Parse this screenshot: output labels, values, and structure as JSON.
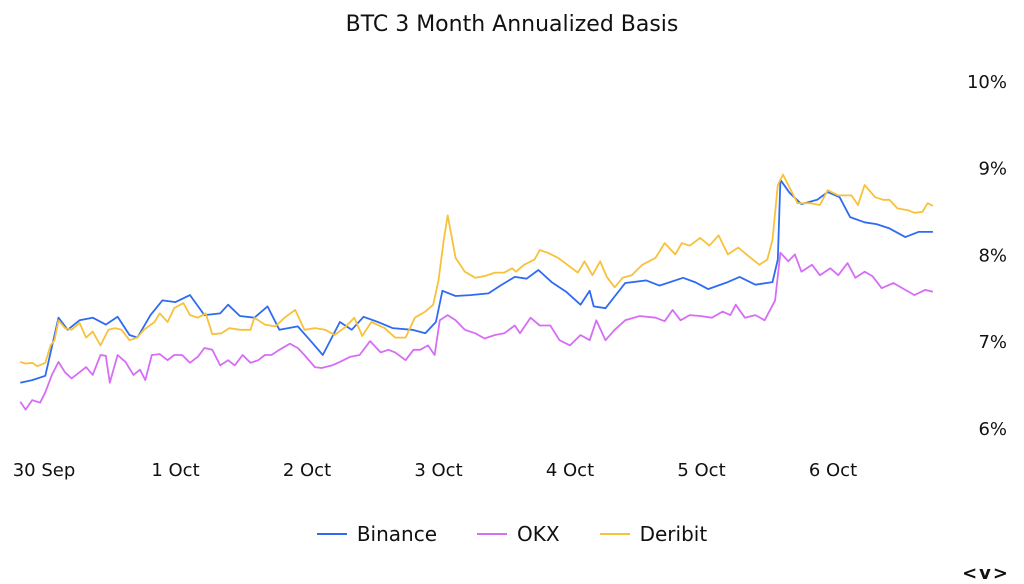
{
  "chart_data": {
    "type": "line",
    "title": "BTC 3 Month Annualized Basis",
    "xlabel": "",
    "ylabel": "",
    "x_unit": "days since 30 Sep",
    "x_ticks": [
      {
        "x": 0,
        "label": "30 Sep"
      },
      {
        "x": 1,
        "label": "1 Oct"
      },
      {
        "x": 2,
        "label": "2 Oct"
      },
      {
        "x": 3,
        "label": "3 Oct"
      },
      {
        "x": 4,
        "label": "4 Oct"
      },
      {
        "x": 5,
        "label": "5 Oct"
      },
      {
        "x": 6,
        "label": "6 Oct"
      }
    ],
    "y_ticks": [
      {
        "y": 6,
        "label": "6%"
      },
      {
        "y": 7,
        "label": "7%"
      },
      {
        "y": 8,
        "label": "8%"
      },
      {
        "y": 9,
        "label": "9%"
      },
      {
        "y": 10,
        "label": "10%"
      }
    ],
    "ylim": [
      6,
      10
    ],
    "xlim": [
      -0.18,
      6.76
    ],
    "y_axis_side": "right",
    "grid": false,
    "legend_position": "bottom-center",
    "series": [
      {
        "name": "Binance",
        "color": "#2f6bf2",
        "points": [
          [
            -0.18,
            6.52
          ],
          [
            -0.09,
            6.55
          ],
          [
            0.01,
            6.6
          ],
          [
            0.11,
            7.27
          ],
          [
            0.18,
            7.13
          ],
          [
            0.27,
            7.24
          ],
          [
            0.37,
            7.27
          ],
          [
            0.47,
            7.19
          ],
          [
            0.56,
            7.28
          ],
          [
            0.65,
            7.07
          ],
          [
            0.71,
            7.04
          ],
          [
            0.81,
            7.3
          ],
          [
            0.9,
            7.47
          ],
          [
            1.0,
            7.45
          ],
          [
            1.11,
            7.53
          ],
          [
            1.22,
            7.3
          ],
          [
            1.34,
            7.32
          ],
          [
            1.4,
            7.42
          ],
          [
            1.49,
            7.29
          ],
          [
            1.6,
            7.27
          ],
          [
            1.7,
            7.4
          ],
          [
            1.79,
            7.13
          ],
          [
            1.93,
            7.17
          ],
          [
            2.04,
            6.98
          ],
          [
            2.12,
            6.84
          ],
          [
            2.25,
            7.22
          ],
          [
            2.34,
            7.13
          ],
          [
            2.43,
            7.28
          ],
          [
            2.54,
            7.22
          ],
          [
            2.65,
            7.15
          ],
          [
            2.8,
            7.13
          ],
          [
            2.9,
            7.09
          ],
          [
            2.98,
            7.22
          ],
          [
            3.03,
            7.58
          ],
          [
            3.13,
            7.52
          ],
          [
            3.24,
            7.53
          ],
          [
            3.38,
            7.55
          ],
          [
            3.47,
            7.64
          ],
          [
            3.58,
            7.74
          ],
          [
            3.67,
            7.72
          ],
          [
            3.76,
            7.82
          ],
          [
            3.86,
            7.68
          ],
          [
            3.97,
            7.57
          ],
          [
            4.08,
            7.42
          ],
          [
            4.15,
            7.58
          ],
          [
            4.18,
            7.4
          ],
          [
            4.27,
            7.38
          ],
          [
            4.42,
            7.67
          ],
          [
            4.58,
            7.7
          ],
          [
            4.68,
            7.64
          ],
          [
            4.86,
            7.73
          ],
          [
            4.95,
            7.68
          ],
          [
            5.05,
            7.6
          ],
          [
            5.2,
            7.68
          ],
          [
            5.29,
            7.74
          ],
          [
            5.41,
            7.65
          ],
          [
            5.54,
            7.68
          ],
          [
            5.58,
            7.94
          ],
          [
            5.6,
            8.86
          ],
          [
            5.67,
            8.71
          ],
          [
            5.76,
            8.58
          ],
          [
            5.88,
            8.63
          ],
          [
            5.96,
            8.72
          ],
          [
            6.05,
            8.66
          ],
          [
            6.13,
            8.43
          ],
          [
            6.24,
            8.37
          ],
          [
            6.33,
            8.35
          ],
          [
            6.43,
            8.3
          ],
          [
            6.55,
            8.2
          ],
          [
            6.65,
            8.26
          ],
          [
            6.76,
            8.26
          ]
        ]
      },
      {
        "name": "OKX",
        "color": "#d66ef5",
        "points": [
          [
            -0.18,
            6.3
          ],
          [
            -0.14,
            6.21
          ],
          [
            -0.09,
            6.32
          ],
          [
            -0.03,
            6.29
          ],
          [
            0.01,
            6.41
          ],
          [
            0.06,
            6.61
          ],
          [
            0.11,
            6.76
          ],
          [
            0.16,
            6.64
          ],
          [
            0.21,
            6.57
          ],
          [
            0.27,
            6.64
          ],
          [
            0.32,
            6.7
          ],
          [
            0.37,
            6.61
          ],
          [
            0.43,
            6.84
          ],
          [
            0.47,
            6.83
          ],
          [
            0.5,
            6.52
          ],
          [
            0.56,
            6.84
          ],
          [
            0.62,
            6.76
          ],
          [
            0.68,
            6.61
          ],
          [
            0.73,
            6.67
          ],
          [
            0.77,
            6.55
          ],
          [
            0.82,
            6.84
          ],
          [
            0.88,
            6.85
          ],
          [
            0.94,
            6.78
          ],
          [
            0.99,
            6.84
          ],
          [
            1.05,
            6.84
          ],
          [
            1.11,
            6.75
          ],
          [
            1.17,
            6.82
          ],
          [
            1.22,
            6.92
          ],
          [
            1.28,
            6.9
          ],
          [
            1.34,
            6.72
          ],
          [
            1.4,
            6.78
          ],
          [
            1.45,
            6.72
          ],
          [
            1.51,
            6.84
          ],
          [
            1.57,
            6.75
          ],
          [
            1.63,
            6.78
          ],
          [
            1.68,
            6.84
          ],
          [
            1.73,
            6.84
          ],
          [
            1.79,
            6.9
          ],
          [
            1.87,
            6.97
          ],
          [
            1.93,
            6.92
          ],
          [
            1.98,
            6.84
          ],
          [
            2.06,
            6.7
          ],
          [
            2.11,
            6.69
          ],
          [
            2.19,
            6.72
          ],
          [
            2.25,
            6.76
          ],
          [
            2.33,
            6.82
          ],
          [
            2.4,
            6.84
          ],
          [
            2.48,
            7.0
          ],
          [
            2.56,
            6.87
          ],
          [
            2.62,
            6.9
          ],
          [
            2.67,
            6.87
          ],
          [
            2.75,
            6.78
          ],
          [
            2.81,
            6.9
          ],
          [
            2.86,
            6.9
          ],
          [
            2.92,
            6.95
          ],
          [
            2.97,
            6.84
          ],
          [
            3.01,
            7.24
          ],
          [
            3.07,
            7.3
          ],
          [
            3.13,
            7.24
          ],
          [
            3.2,
            7.13
          ],
          [
            3.28,
            7.09
          ],
          [
            3.35,
            7.03
          ],
          [
            3.43,
            7.07
          ],
          [
            3.5,
            7.09
          ],
          [
            3.58,
            7.18
          ],
          [
            3.62,
            7.09
          ],
          [
            3.7,
            7.27
          ],
          [
            3.77,
            7.18
          ],
          [
            3.85,
            7.18
          ],
          [
            3.92,
            7.01
          ],
          [
            4.0,
            6.95
          ],
          [
            4.08,
            7.07
          ],
          [
            4.15,
            7.01
          ],
          [
            4.2,
            7.24
          ],
          [
            4.27,
            7.01
          ],
          [
            4.34,
            7.13
          ],
          [
            4.42,
            7.24
          ],
          [
            4.53,
            7.29
          ],
          [
            4.65,
            7.27
          ],
          [
            4.72,
            7.23
          ],
          [
            4.78,
            7.36
          ],
          [
            4.84,
            7.24
          ],
          [
            4.91,
            7.3
          ],
          [
            4.99,
            7.29
          ],
          [
            5.08,
            7.27
          ],
          [
            5.16,
            7.34
          ],
          [
            5.22,
            7.3
          ],
          [
            5.26,
            7.42
          ],
          [
            5.33,
            7.27
          ],
          [
            5.41,
            7.3
          ],
          [
            5.48,
            7.24
          ],
          [
            5.56,
            7.47
          ],
          [
            5.6,
            8.02
          ],
          [
            5.66,
            7.92
          ],
          [
            5.71,
            8.0
          ],
          [
            5.76,
            7.8
          ],
          [
            5.84,
            7.88
          ],
          [
            5.9,
            7.76
          ],
          [
            5.98,
            7.84
          ],
          [
            6.04,
            7.76
          ],
          [
            6.11,
            7.9
          ],
          [
            6.17,
            7.73
          ],
          [
            6.24,
            7.8
          ],
          [
            6.3,
            7.75
          ],
          [
            6.37,
            7.61
          ],
          [
            6.46,
            7.67
          ],
          [
            6.55,
            7.59
          ],
          [
            6.62,
            7.53
          ],
          [
            6.7,
            7.59
          ],
          [
            6.76,
            7.57
          ]
        ]
      },
      {
        "name": "Deribit",
        "color": "#f7c23b",
        "points": [
          [
            -0.18,
            6.76
          ],
          [
            -0.14,
            6.74
          ],
          [
            -0.09,
            6.75
          ],
          [
            -0.05,
            6.71
          ],
          [
            0.01,
            6.75
          ],
          [
            0.05,
            6.95
          ],
          [
            0.08,
            7.01
          ],
          [
            0.11,
            7.24
          ],
          [
            0.16,
            7.15
          ],
          [
            0.21,
            7.13
          ],
          [
            0.27,
            7.21
          ],
          [
            0.32,
            7.04
          ],
          [
            0.37,
            7.11
          ],
          [
            0.43,
            6.95
          ],
          [
            0.49,
            7.13
          ],
          [
            0.54,
            7.15
          ],
          [
            0.59,
            7.13
          ],
          [
            0.65,
            7.01
          ],
          [
            0.71,
            7.04
          ],
          [
            0.76,
            7.13
          ],
          [
            0.84,
            7.22
          ],
          [
            0.88,
            7.32
          ],
          [
            0.94,
            7.22
          ],
          [
            0.99,
            7.38
          ],
          [
            1.06,
            7.44
          ],
          [
            1.11,
            7.3
          ],
          [
            1.17,
            7.27
          ],
          [
            1.23,
            7.32
          ],
          [
            1.28,
            7.08
          ],
          [
            1.35,
            7.09
          ],
          [
            1.41,
            7.15
          ],
          [
            1.49,
            7.13
          ],
          [
            1.57,
            7.13
          ],
          [
            1.6,
            7.27
          ],
          [
            1.68,
            7.19
          ],
          [
            1.76,
            7.17
          ],
          [
            1.83,
            7.27
          ],
          [
            1.91,
            7.36
          ],
          [
            1.98,
            7.13
          ],
          [
            2.06,
            7.15
          ],
          [
            2.14,
            7.13
          ],
          [
            2.21,
            7.07
          ],
          [
            2.29,
            7.16
          ],
          [
            2.36,
            7.27
          ],
          [
            2.42,
            7.06
          ],
          [
            2.49,
            7.22
          ],
          [
            2.59,
            7.15
          ],
          [
            2.67,
            7.04
          ],
          [
            2.75,
            7.04
          ],
          [
            2.82,
            7.27
          ],
          [
            2.9,
            7.34
          ],
          [
            2.96,
            7.42
          ],
          [
            3.0,
            7.7
          ],
          [
            3.04,
            8.17
          ],
          [
            3.07,
            8.45
          ],
          [
            3.13,
            7.96
          ],
          [
            3.2,
            7.8
          ],
          [
            3.28,
            7.73
          ],
          [
            3.35,
            7.75
          ],
          [
            3.43,
            7.79
          ],
          [
            3.5,
            7.79
          ],
          [
            3.56,
            7.84
          ],
          [
            3.59,
            7.8
          ],
          [
            3.65,
            7.88
          ],
          [
            3.73,
            7.94
          ],
          [
            3.77,
            8.05
          ],
          [
            3.83,
            8.02
          ],
          [
            3.91,
            7.96
          ],
          [
            3.98,
            7.88
          ],
          [
            4.06,
            7.79
          ],
          [
            4.11,
            7.92
          ],
          [
            4.17,
            7.76
          ],
          [
            4.23,
            7.92
          ],
          [
            4.28,
            7.74
          ],
          [
            4.34,
            7.62
          ],
          [
            4.4,
            7.73
          ],
          [
            4.47,
            7.76
          ],
          [
            4.55,
            7.88
          ],
          [
            4.65,
            7.96
          ],
          [
            4.72,
            8.13
          ],
          [
            4.8,
            8.0
          ],
          [
            4.85,
            8.13
          ],
          [
            4.91,
            8.1
          ],
          [
            4.99,
            8.19
          ],
          [
            5.06,
            8.1
          ],
          [
            5.13,
            8.22
          ],
          [
            5.2,
            8.0
          ],
          [
            5.28,
            8.08
          ],
          [
            5.35,
            7.99
          ],
          [
            5.44,
            7.88
          ],
          [
            5.5,
            7.94
          ],
          [
            5.54,
            8.17
          ],
          [
            5.58,
            8.8
          ],
          [
            5.62,
            8.92
          ],
          [
            5.67,
            8.77
          ],
          [
            5.73,
            8.59
          ],
          [
            5.83,
            8.59
          ],
          [
            5.9,
            8.57
          ],
          [
            5.96,
            8.74
          ],
          [
            6.04,
            8.68
          ],
          [
            6.09,
            8.68
          ],
          [
            6.14,
            8.68
          ],
          [
            6.19,
            8.57
          ],
          [
            6.24,
            8.8
          ],
          [
            6.32,
            8.66
          ],
          [
            6.38,
            8.63
          ],
          [
            6.43,
            8.63
          ],
          [
            6.49,
            8.53
          ],
          [
            6.57,
            8.51
          ],
          [
            6.62,
            8.48
          ],
          [
            6.68,
            8.49
          ],
          [
            6.72,
            8.59
          ],
          [
            6.76,
            8.56
          ]
        ]
      }
    ]
  },
  "nav_label": "<v>"
}
